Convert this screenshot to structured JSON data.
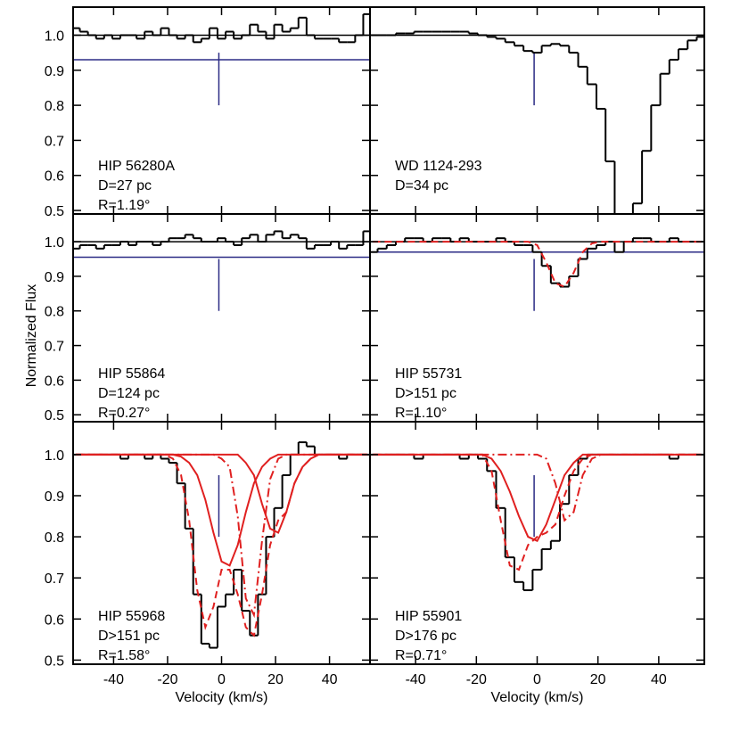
{
  "chart_data": [
    {
      "type": "line",
      "labels": [
        "HIP 56280A",
        "D=27 pc",
        "R=1.19°"
      ],
      "xlim": [
        -55,
        55
      ],
      "ylim": [
        0.49,
        1.08
      ],
      "xticks": [
        -40,
        -20,
        0,
        20,
        40
      ],
      "yticks": [
        0.5,
        0.6,
        0.7,
        0.8,
        0.9,
        {
          "value": 1,
          "label": "1.0"
        }
      ],
      "x": [
        -54,
        -51,
        -48,
        -45,
        -42,
        -39,
        -36,
        -33,
        -30,
        -27,
        -24,
        -21,
        -18,
        -15,
        -12,
        -9,
        -6,
        -3,
        0,
        3,
        6,
        9,
        12,
        15,
        18,
        21,
        24,
        27,
        30,
        33,
        36,
        39,
        42,
        45,
        48,
        51,
        54
      ],
      "hlines": [
        {
          "y": 1,
          "color": "#000000"
        },
        {
          "y": 0.93,
          "color": "#2b2b85"
        }
      ],
      "vmarker": {
        "x": -1,
        "y": [
          0.8,
          0.95
        ],
        "color": "#2b2b85"
      },
      "series": [
        {
          "color": "#000000",
          "style": "step",
          "values": [
            1.02,
            1.01,
            1.0,
            0.99,
            1.0,
            0.99,
            1.0,
            1.0,
            0.99,
            1.01,
            1.0,
            1.02,
            1.0,
            0.99,
            1.0,
            0.98,
            0.99,
            1.02,
            0.99,
            1.01,
            0.99,
            1.0,
            1.03,
            1.01,
            0.99,
            1.03,
            1.01,
            1.02,
            1.05,
            1.0,
            0.99,
            0.99,
            0.99,
            0.98,
            0.98,
            1.0,
            1.06
          ]
        }
      ]
    },
    {
      "type": "line",
      "labels": [
        "WD 1124-293",
        "D=34 pc"
      ],
      "xlim": [
        -55,
        55
      ],
      "ylim": [
        0.49,
        1.08
      ],
      "xticks": [
        -40,
        -20,
        0,
        20,
        40
      ],
      "yticks": [
        0.5,
        0.6,
        0.7,
        0.8,
        0.9,
        {
          "value": 1,
          "label": "1.0"
        }
      ],
      "x": [
        -54,
        -51,
        -48,
        -45,
        -42,
        -39,
        -36,
        -33,
        -30,
        -27,
        -24,
        -21,
        -18,
        -15,
        -12,
        -9,
        -6,
        -3,
        0,
        3,
        6,
        9,
        12,
        15,
        18,
        21,
        24,
        27,
        30,
        33,
        36,
        39,
        42,
        45,
        48,
        51,
        54
      ],
      "hlines": [
        {
          "y": 1,
          "color": "#000000"
        }
      ],
      "vmarker": {
        "x": -1,
        "y": [
          0.8,
          0.95
        ],
        "color": "#2b2b85"
      },
      "series": [
        {
          "color": "#000000",
          "style": "step",
          "values": [
            1.0,
            1.0,
            1.0,
            1.005,
            1.005,
            1.01,
            1.01,
            1.01,
            1.01,
            1.01,
            1.01,
            1.005,
            1.0,
            0.995,
            0.99,
            0.98,
            0.97,
            0.955,
            0.95,
            0.97,
            0.975,
            0.97,
            0.95,
            0.91,
            0.86,
            0.79,
            0.64,
            0.49,
            0.49,
            0.52,
            0.67,
            0.8,
            0.89,
            0.93,
            0.96,
            0.985,
            0.995
          ]
        }
      ]
    },
    {
      "type": "line",
      "labels": [
        "HIP 55864",
        "D=124 pc",
        "R=0.27°"
      ],
      "ylabel": "Normalized Flux",
      "xlim": [
        -55,
        55
      ],
      "ylim": [
        0.48,
        1.08
      ],
      "xticks": [
        -40,
        -20,
        0,
        20,
        40
      ],
      "yticks": [
        0.5,
        0.6,
        0.7,
        0.8,
        0.9,
        {
          "value": 1,
          "label": "1.0"
        }
      ],
      "x": [
        -54,
        -51,
        -48,
        -45,
        -42,
        -39,
        -36,
        -33,
        -30,
        -27,
        -24,
        -21,
        -18,
        -15,
        -12,
        -9,
        -6,
        -3,
        0,
        3,
        6,
        9,
        12,
        15,
        18,
        21,
        24,
        27,
        30,
        33,
        36,
        39,
        42,
        45,
        48,
        51,
        54
      ],
      "hlines": [
        {
          "y": 1,
          "color": "#000000"
        },
        {
          "y": 0.955,
          "color": "#2b2b85"
        }
      ],
      "vmarker": {
        "x": -1,
        "y": [
          0.8,
          0.95
        ],
        "color": "#2b2b85"
      },
      "series": [
        {
          "color": "#000000",
          "style": "step",
          "values": [
            0.98,
            0.99,
            0.99,
            0.98,
            0.99,
            0.99,
            1.0,
            0.99,
            1.0,
            1.0,
            0.99,
            1.0,
            1.01,
            1.01,
            1.02,
            1.01,
            1.0,
            1.0,
            1.01,
            1.0,
            0.99,
            1.01,
            1.02,
            1.0,
            1.02,
            1.03,
            1.01,
            1.02,
            1.01,
            0.98,
            0.99,
            0.99,
            1.0,
            0.98,
            0.99,
            0.99,
            1.03
          ]
        }
      ]
    },
    {
      "type": "line",
      "labels": [
        "HIP 55731",
        "D>151 pc",
        "R=1.10°"
      ],
      "xlim": [
        -55,
        55
      ],
      "ylim": [
        0.48,
        1.08
      ],
      "xticks": [
        -40,
        -20,
        0,
        20,
        40
      ],
      "yticks": [
        0.5,
        0.6,
        0.7,
        0.8,
        0.9,
        {
          "value": 1,
          "label": "1.0"
        }
      ],
      "x": [
        -54,
        -51,
        -48,
        -45,
        -42,
        -39,
        -36,
        -33,
        -30,
        -27,
        -24,
        -21,
        -18,
        -15,
        -12,
        -9,
        -6,
        -3,
        0,
        3,
        6,
        9,
        12,
        15,
        18,
        21,
        24,
        27,
        30,
        33,
        36,
        39,
        42,
        45,
        48,
        51,
        54
      ],
      "hlines": [
        {
          "y": 1,
          "color": "#000000"
        },
        {
          "y": 0.97,
          "color": "#2b2b85"
        }
      ],
      "vmarker": {
        "x": -1,
        "y": [
          0.8,
          0.95
        ],
        "color": "#2b2b85"
      },
      "series": [
        {
          "color": "#000000",
          "style": "step",
          "values": [
            0.97,
            0.98,
            0.99,
            1.0,
            1.01,
            1.01,
            1.0,
            1.01,
            1.01,
            1.0,
            1.01,
            1.0,
            1.0,
            1.0,
            1.01,
            1.0,
            0.99,
            0.99,
            0.97,
            0.93,
            0.88,
            0.87,
            0.9,
            0.95,
            0.98,
            0.99,
            1.0,
            0.97,
            1.0,
            1.01,
            1.01,
            1.0,
            1.0,
            1.01,
            1.0,
            1.0,
            1.0
          ]
        },
        {
          "color": "#e02020",
          "style": "dashed",
          "values": [
            1,
            1,
            1,
            1,
            1,
            1,
            1,
            1,
            1,
            1,
            1,
            1,
            1,
            1,
            1,
            1,
            1,
            1.0,
            0.99,
            0.94,
            0.88,
            0.87,
            0.91,
            0.97,
            0.995,
            1,
            1,
            1,
            1,
            1,
            1,
            1,
            1,
            1,
            1,
            1,
            1
          ]
        }
      ]
    },
    {
      "type": "line",
      "labels": [
        "HIP 55968",
        "D>151 pc",
        "R=1.58°"
      ],
      "xlabel": "Velocity (km/s)",
      "xlim": [
        -55,
        55
      ],
      "ylim": [
        0.49,
        1.08
      ],
      "xticks": [
        -40,
        -20,
        0,
        20,
        40
      ],
      "yticks": [
        0.5,
        0.6,
        0.7,
        0.8,
        0.9,
        {
          "value": 1,
          "label": "1.0"
        }
      ],
      "x": [
        -54,
        -51,
        -48,
        -45,
        -42,
        -39,
        -36,
        -33,
        -30,
        -27,
        -24,
        -21,
        -18,
        -15,
        -12,
        -9,
        -6,
        -3,
        0,
        3,
        6,
        9,
        12,
        15,
        18,
        21,
        24,
        27,
        30,
        33,
        36,
        39,
        42,
        45,
        48,
        51,
        54
      ],
      "hlines": [],
      "vmarker": {
        "x": -1,
        "y": [
          0.8,
          0.95
        ],
        "color": "#2b2b85"
      },
      "series": [
        {
          "color": "#000000",
          "style": "step",
          "values": [
            1.0,
            1.0,
            1.0,
            1.0,
            1.0,
            1.0,
            0.99,
            1.0,
            1.0,
            0.99,
            1.0,
            0.99,
            0.98,
            0.93,
            0.82,
            0.66,
            0.54,
            0.53,
            0.63,
            0.66,
            0.72,
            0.62,
            0.56,
            0.66,
            0.8,
            0.87,
            0.95,
            1.0,
            1.03,
            1.02,
            1.0,
            1.0,
            1.0,
            0.99,
            1.0,
            1.0,
            1.0
          ]
        },
        {
          "color": "#e02020",
          "style": "solid",
          "values": [
            1,
            1,
            1,
            1,
            1,
            1,
            1,
            1,
            1,
            1,
            1,
            1,
            1.0,
            0.995,
            0.98,
            0.95,
            0.89,
            0.81,
            0.74,
            0.73,
            0.78,
            0.86,
            0.93,
            0.97,
            0.99,
            1,
            1,
            1,
            1,
            1,
            1,
            1,
            1,
            1,
            1,
            1,
            1
          ]
        },
        {
          "color": "#e02020",
          "style": "solid",
          "values": [
            1,
            1,
            1,
            1,
            1,
            1,
            1,
            1,
            1,
            1,
            1,
            1,
            1,
            1,
            1,
            1,
            1,
            1,
            1,
            1,
            1.0,
            0.98,
            0.95,
            0.88,
            0.82,
            0.81,
            0.86,
            0.93,
            0.97,
            0.99,
            1,
            1,
            1,
            1,
            1,
            1,
            1
          ]
        },
        {
          "color": "#e02020",
          "style": "dashdot",
          "values": [
            1,
            1,
            1,
            1,
            1,
            1,
            1,
            1,
            1,
            1,
            1,
            1,
            1,
            1,
            1,
            1,
            1,
            1,
            0.99,
            0.97,
            0.85,
            0.65,
            0.61,
            0.79,
            0.94,
            0.99,
            1,
            1,
            1,
            1,
            1,
            1,
            1,
            1,
            1,
            1,
            1
          ]
        },
        {
          "color": "#e02020",
          "style": "dashed",
          "values": [
            1,
            1,
            1,
            1,
            1,
            1,
            1,
            1,
            1,
            1,
            1,
            1,
            0.99,
            0.95,
            0.84,
            0.67,
            0.58,
            0.63,
            0.72,
            0.72,
            0.66,
            0.58,
            0.56,
            0.66,
            0.78,
            0.84,
            0.86,
            0.93,
            0.97,
            0.99,
            1,
            1,
            1,
            1,
            1,
            1,
            1
          ]
        }
      ]
    },
    {
      "type": "line",
      "labels": [
        "HIP 55901",
        "D>176 pc",
        "R=0.71°"
      ],
      "xlabel": "Velocity (km/s)",
      "xlim": [
        -55,
        55
      ],
      "ylim": [
        0.49,
        1.08
      ],
      "xticks": [
        -40,
        -20,
        0,
        20,
        40
      ],
      "yticks": [
        0.5,
        0.6,
        0.7,
        0.8,
        0.9,
        {
          "value": 1,
          "label": "1.0"
        }
      ],
      "x": [
        -54,
        -51,
        -48,
        -45,
        -42,
        -39,
        -36,
        -33,
        -30,
        -27,
        -24,
        -21,
        -18,
        -15,
        -12,
        -9,
        -6,
        -3,
        0,
        3,
        6,
        9,
        12,
        15,
        18,
        21,
        24,
        27,
        30,
        33,
        36,
        39,
        42,
        45,
        48,
        51,
        54
      ],
      "hlines": [],
      "vmarker": {
        "x": -1,
        "y": [
          0.8,
          0.95
        ],
        "color": "#2b2b85"
      },
      "series": [
        {
          "color": "#000000",
          "style": "step",
          "values": [
            1.0,
            1.0,
            1.0,
            1.0,
            1.0,
            0.99,
            1.0,
            1.0,
            1.0,
            1.0,
            0.99,
            1.0,
            0.99,
            0.96,
            0.87,
            0.75,
            0.69,
            0.67,
            0.72,
            0.77,
            0.79,
            0.88,
            0.95,
            0.99,
            1.0,
            1.0,
            1.0,
            1.0,
            1.0,
            1.0,
            1.0,
            1.0,
            1.0,
            0.99,
            1.0,
            1.0,
            1.0
          ]
        },
        {
          "color": "#e02020",
          "style": "solid",
          "values": [
            1,
            1,
            1,
            1,
            1,
            1,
            1,
            1,
            1,
            1,
            1,
            1,
            1.0,
            0.99,
            0.96,
            0.91,
            0.85,
            0.8,
            0.79,
            0.83,
            0.89,
            0.95,
            0.98,
            1.0,
            1,
            1,
            1,
            1,
            1,
            1,
            1,
            1,
            1,
            1,
            1,
            1,
            1
          ]
        },
        {
          "color": "#e02020",
          "style": "dashdot",
          "values": [
            1,
            1,
            1,
            1,
            1,
            1,
            1,
            1,
            1,
            1,
            1,
            1,
            1,
            1,
            1,
            1,
            1,
            1,
            1.0,
            0.99,
            0.93,
            0.84,
            0.86,
            0.95,
            0.99,
            1,
            1,
            1,
            1,
            1,
            1,
            1,
            1,
            1,
            1,
            1,
            1
          ]
        },
        {
          "color": "#e02020",
          "style": "dashed",
          "values": [
            1,
            1,
            1,
            1,
            1,
            1,
            1,
            1,
            1,
            1,
            1,
            1,
            1.0,
            0.96,
            0.84,
            0.73,
            0.72,
            0.78,
            0.8,
            0.81,
            0.83,
            0.9,
            0.96,
            0.99,
            1,
            1,
            1,
            1,
            1,
            1,
            1,
            1,
            1,
            1,
            1,
            1,
            1
          ]
        }
      ]
    }
  ]
}
